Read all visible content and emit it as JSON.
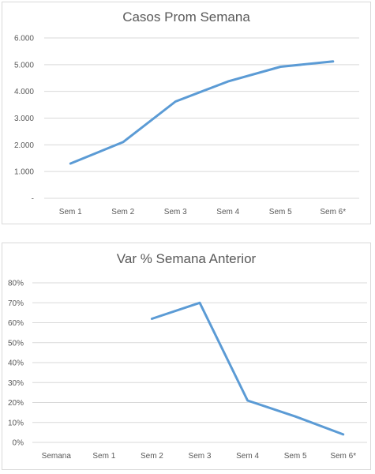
{
  "chart_data": [
    {
      "type": "line",
      "title": "Casos Prom Semana",
      "categories": [
        "Sem 1",
        "Sem 2",
        "Sem 3",
        "Sem 4",
        "Sem 5",
        "Sem 6*"
      ],
      "series": [
        {
          "values": [
            1300,
            2100,
            3620,
            4370,
            4920,
            5120
          ]
        }
      ],
      "ylim": [
        0,
        6000
      ],
      "yticks": [
        0,
        1000,
        2000,
        3000,
        4000,
        5000,
        6000
      ],
      "ytick_labels": [
        "-",
        "1.000",
        "2.000",
        "3.000",
        "4.000",
        "5.000",
        "6.000"
      ],
      "grid": true,
      "legend": "none",
      "line_color": "#5b9bd5"
    },
    {
      "type": "line",
      "title": "Var % Semana Anterior",
      "categories": [
        "Semana",
        "Sem 1",
        "Sem 2",
        "Sem 3",
        "Sem 4",
        "Sem 5",
        "Sem 6*"
      ],
      "series": [
        {
          "values": [
            null,
            null,
            0.62,
            0.7,
            0.21,
            0.13,
            0.04
          ]
        }
      ],
      "ylim": [
        0,
        0.8
      ],
      "yticks": [
        0,
        0.1,
        0.2,
        0.3,
        0.4,
        0.5,
        0.6,
        0.7,
        0.8
      ],
      "ytick_labels": [
        "0%",
        "10%",
        "20%",
        "30%",
        "40%",
        "50%",
        "60%",
        "70%",
        "80%"
      ],
      "grid": true,
      "legend": "none",
      "line_color": "#5b9bd5"
    }
  ]
}
